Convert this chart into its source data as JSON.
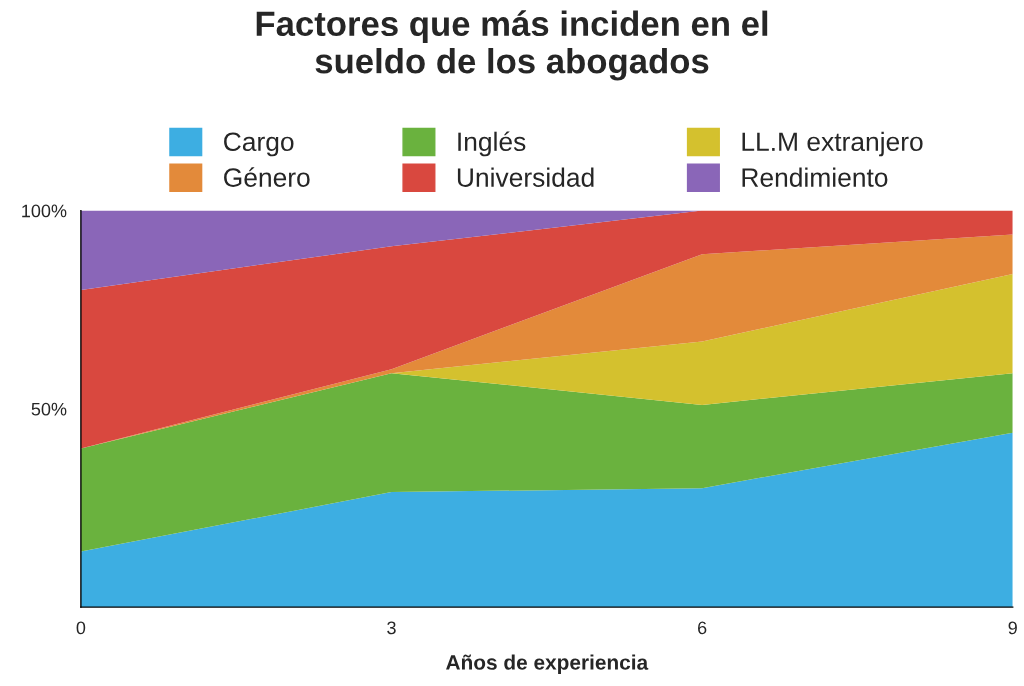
{
  "chart_data": {
    "type": "area",
    "stacked": true,
    "title": "Factores que más inciden en el\nsueldo de los abogados",
    "xlabel": "Años de experiencia",
    "x": [
      0,
      3,
      6,
      9
    ],
    "xlim": [
      0,
      9
    ],
    "xticks": [
      0,
      3,
      6,
      9
    ],
    "ylim": [
      0,
      100
    ],
    "yticks": [
      {
        "value": 50,
        "label": "50%"
      },
      {
        "value": 100,
        "label": "100%"
      }
    ],
    "legend": "top",
    "grid": false,
    "series": [
      {
        "name": "Cargo",
        "color": "#3daee2",
        "values": [
          14,
          29,
          30,
          44
        ]
      },
      {
        "name": "Inglés",
        "color": "#6ab23e",
        "values": [
          26,
          30,
          21,
          15
        ]
      },
      {
        "name": "LL.M extranjero",
        "color": "#d4c12e",
        "values": [
          0,
          0,
          16,
          25
        ]
      },
      {
        "name": "Género",
        "color": "#e38a3a",
        "values": [
          0,
          1,
          22,
          10
        ]
      },
      {
        "name": "Universidad",
        "color": "#d9483f",
        "values": [
          40,
          31,
          11,
          6
        ]
      },
      {
        "name": "Rendimiento",
        "color": "#8a66b8",
        "values": [
          20,
          9,
          0,
          0
        ]
      }
    ]
  }
}
